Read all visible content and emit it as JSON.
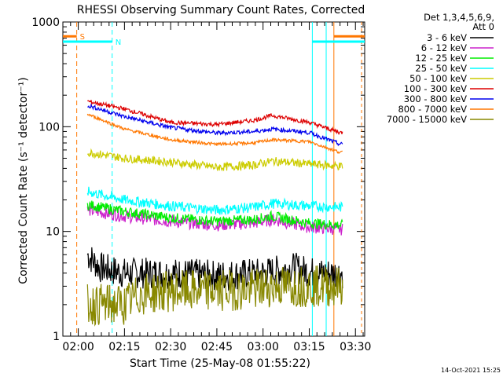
{
  "chart_data": {
    "type": "line",
    "title": "RHESSI Observing Summary Count Rates, Corrected",
    "xlabel": "Start Time (25-May-08 01:55:22)",
    "ylabel": "Corrected Count Rate (s⁻¹ detector⁻¹)",
    "y_scale": "log",
    "ylim": [
      1,
      1000
    ],
    "xlim_minutes": [
      0,
      98
    ],
    "x_tick_labels": [
      "02:00",
      "02:15",
      "02:30",
      "02:45",
      "03:00",
      "03:15",
      "03:30"
    ],
    "x_tick_minutes": [
      5,
      20,
      35,
      50,
      65,
      80,
      95
    ],
    "y_tick_labels": [
      "1",
      "10",
      "100",
      "1000"
    ],
    "y_tick_values": [
      1,
      10,
      100,
      1000
    ],
    "legend_header": "Det 1,3,4,5,6,9,",
    "legend_attenuator": "Att 0",
    "legend_position": "top-right",
    "date_stamp": "14-Oct-2021 15:25",
    "series": [
      {
        "name": "3 - 6 keV",
        "color": "#000000",
        "points": [
          [
            8,
            6
          ],
          [
            12,
            4.5
          ],
          [
            20,
            4
          ],
          [
            35,
            4
          ],
          [
            50,
            3.8
          ],
          [
            65,
            4
          ],
          [
            75,
            4.5
          ],
          [
            82,
            4
          ],
          [
            90,
            4
          ]
        ],
        "noise": 0.15
      },
      {
        "name": "6 - 12 keV",
        "color": "#cc22cc",
        "points": [
          [
            8,
            16
          ],
          [
            20,
            14
          ],
          [
            35,
            12.5
          ],
          [
            50,
            11.5
          ],
          [
            62,
            12
          ],
          [
            68,
            13
          ],
          [
            80,
            11
          ],
          [
            90,
            10.5
          ]
        ],
        "noise": 0.06
      },
      {
        "name": "12 - 25 keV",
        "color": "#00ee00",
        "points": [
          [
            8,
            18
          ],
          [
            20,
            15.5
          ],
          [
            35,
            13.5
          ],
          [
            50,
            12.5
          ],
          [
            62,
            13
          ],
          [
            68,
            14
          ],
          [
            80,
            12
          ],
          [
            90,
            11.5
          ]
        ],
        "noise": 0.05
      },
      {
        "name": "25 - 50 keV",
        "color": "#00ffff",
        "points": [
          [
            8,
            24
          ],
          [
            20,
            20
          ],
          [
            35,
            17.5
          ],
          [
            50,
            16
          ],
          [
            62,
            17
          ],
          [
            68,
            18.5
          ],
          [
            80,
            17.5
          ],
          [
            90,
            17
          ]
        ],
        "noise": 0.05
      },
      {
        "name": "50 - 100 keV",
        "color": "#cccc00",
        "points": [
          [
            8,
            57
          ],
          [
            20,
            50
          ],
          [
            35,
            46
          ],
          [
            50,
            41
          ],
          [
            62,
            43
          ],
          [
            68,
            47
          ],
          [
            80,
            44
          ],
          [
            90,
            42
          ]
        ],
        "noise": 0.04
      },
      {
        "name": "100 - 300 keV",
        "color": "#dd0000",
        "points": [
          [
            8,
            175
          ],
          [
            20,
            148
          ],
          [
            35,
            110
          ],
          [
            50,
            105
          ],
          [
            62,
            115
          ],
          [
            68,
            128
          ],
          [
            80,
            110
          ],
          [
            90,
            88
          ]
        ],
        "noise": 0.02
      },
      {
        "name": "300 - 800 keV",
        "color": "#0000ee",
        "points": [
          [
            8,
            160
          ],
          [
            20,
            125
          ],
          [
            35,
            98
          ],
          [
            50,
            87
          ],
          [
            62,
            90
          ],
          [
            68,
            95
          ],
          [
            80,
            88
          ],
          [
            90,
            68
          ]
        ],
        "noise": 0.02
      },
      {
        "name": "800 - 7000 keV",
        "color": "#ff7700",
        "points": [
          [
            8,
            132
          ],
          [
            20,
            95
          ],
          [
            35,
            75
          ],
          [
            50,
            68
          ],
          [
            62,
            70
          ],
          [
            68,
            75
          ],
          [
            80,
            72
          ],
          [
            90,
            57
          ]
        ],
        "noise": 0.015
      },
      {
        "name": "7000 - 15000 keV",
        "color": "#888800",
        "points": [
          [
            8,
            2
          ],
          [
            20,
            2
          ],
          [
            25,
            2.5
          ],
          [
            35,
            2.7
          ],
          [
            50,
            2.7
          ],
          [
            62,
            2.8
          ],
          [
            68,
            3
          ],
          [
            80,
            3
          ],
          [
            90,
            3
          ]
        ],
        "noise": 0.2
      }
    ],
    "orbit_markers": [
      {
        "label": "S",
        "color": "#ff7700",
        "x_start": 0,
        "x_end": 4.5,
        "y_value": 730
      },
      {
        "label": "N",
        "color": "#00ffff",
        "x_start": 0,
        "x_end": 16,
        "y_value": 650
      },
      {
        "label": "",
        "color": "#00ffff",
        "x_start": 81,
        "x_end": 98,
        "y_value": 650
      },
      {
        "label": "",
        "color": "#ff7700",
        "x_start": 88,
        "x_end": 98,
        "y_value": 730
      }
    ]
  }
}
